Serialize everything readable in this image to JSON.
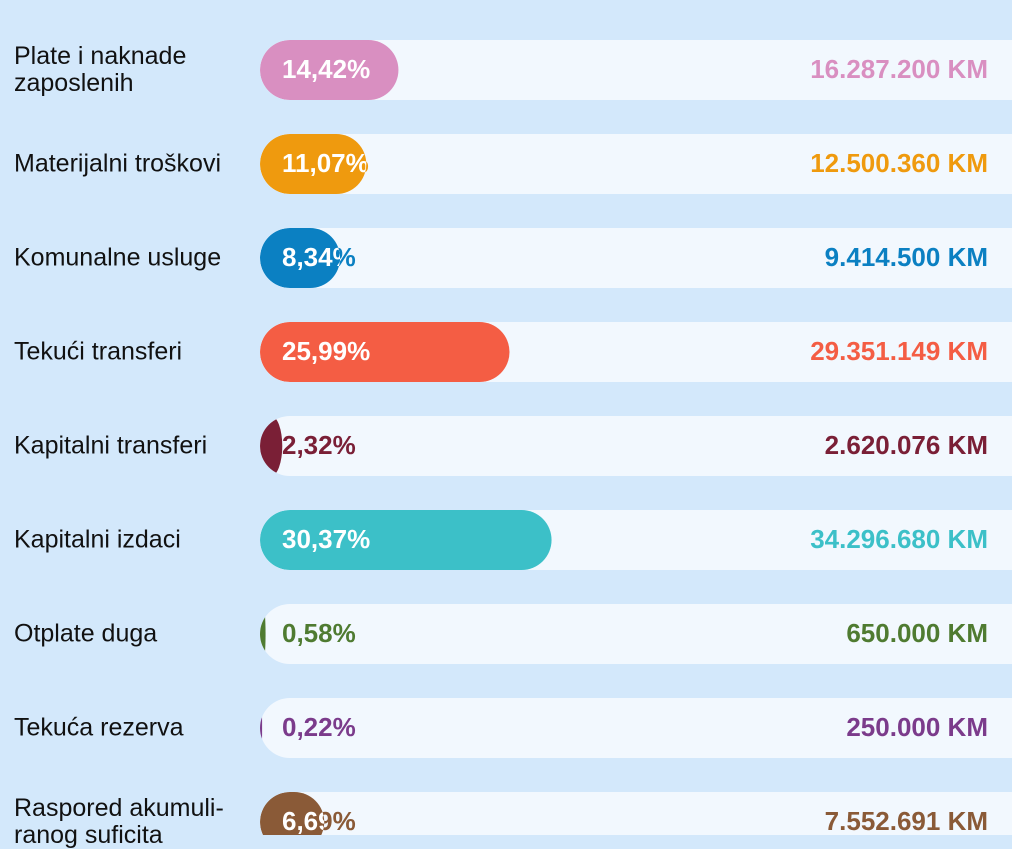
{
  "chart_data": {
    "type": "bar",
    "orientation": "horizontal",
    "categories": [
      "Plate i naknade\nzaposlenih",
      "Materijalni troškovi",
      "Komunalne usluge",
      "Tekući transferi",
      "Kapitalni transferi",
      "Kapitalni izdaci",
      "Otplate duga",
      "Tekuća rezerva",
      "Raspored akumuli-\nranog suficita"
    ],
    "values": [
      14.42,
      11.07,
      8.34,
      25.99,
      2.32,
      30.37,
      0.58,
      0.22,
      6.69
    ],
    "value_labels": [
      "14,42%",
      "11,07%",
      "8,34%",
      "25,99%",
      "2,32%",
      "30,37%",
      "0,58%",
      "0,22%",
      "6,69%"
    ],
    "amounts": [
      "16.287.200 KM",
      "12.500.360 KM",
      "9.414.500 KM",
      "29.351.149 KM",
      "2.620.076 KM",
      "34.296.680 KM",
      "650.000 KM",
      "250.000 KM",
      "7.552.691 KM"
    ],
    "colors": [
      "#d98fc1",
      "#ef9a0e",
      "#0b80c2",
      "#f45d44",
      "#7a1f36",
      "#3cc0c8",
      "#4f7b31",
      "#7b3b8b",
      "#8a5a37"
    ],
    "xlim": [
      0,
      100
    ]
  }
}
